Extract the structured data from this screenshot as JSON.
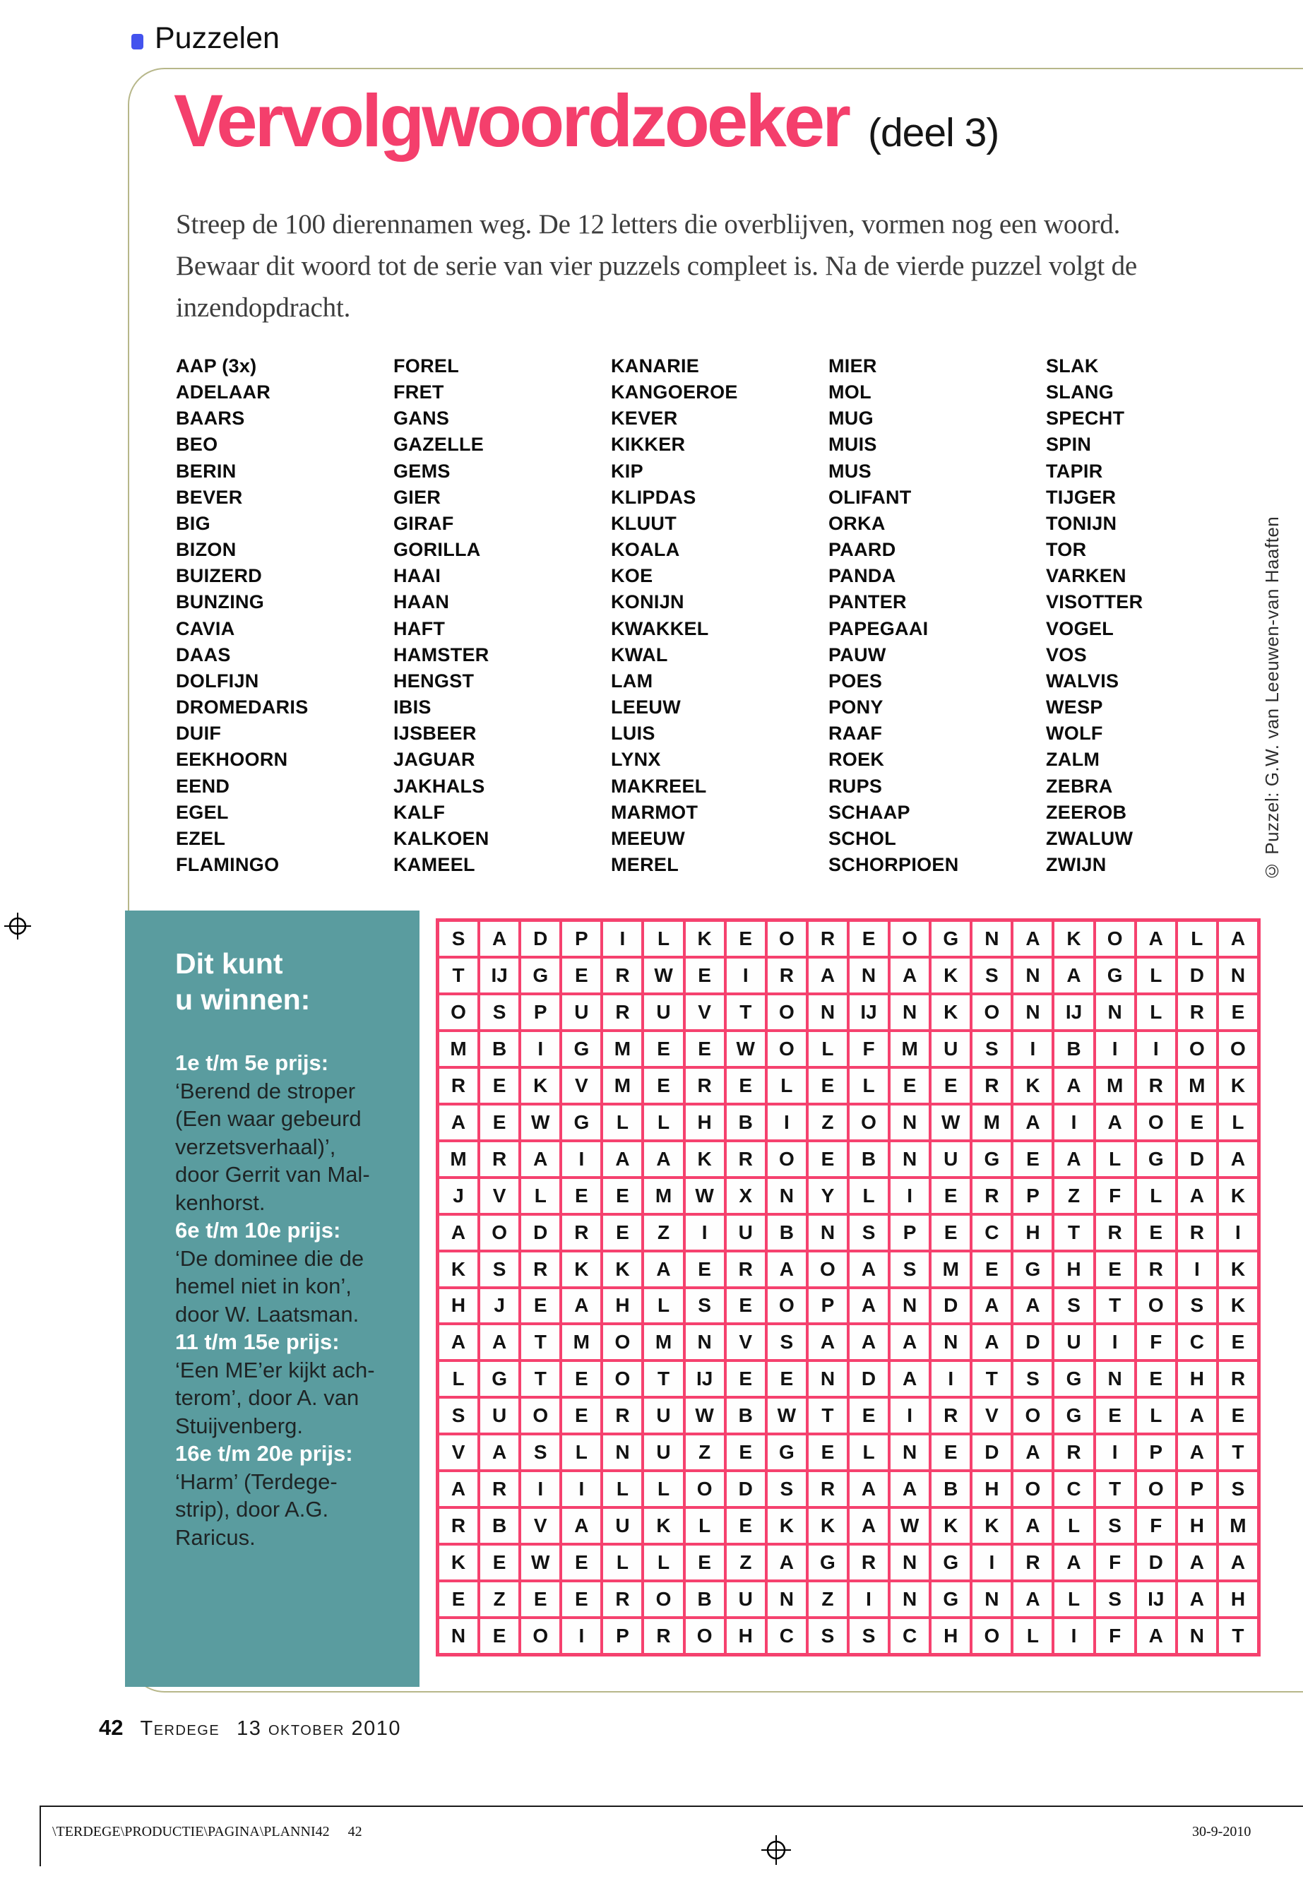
{
  "page": {
    "section_label": "Puzzelen",
    "title": "Vervolgwoordzoeker",
    "title_suffix": "(deel 3)",
    "intro_lines": [
      "Streep de 100 dierennamen weg. De 12 letters die overblijven, vormen nog een woord.",
      "Bewaar dit woord tot de serie van vier puzzels compleet is. Na de vierde puzzel volgt de",
      "inzendopdracht."
    ],
    "credit_vertical": "© Puzzel: G.W. van Leeuwen-van Haaften"
  },
  "colors": {
    "title_pink": "#f43f6c",
    "grid_pink": "#f5416e",
    "prize_teal": "#5a9c9f",
    "header_blue": "#4353ee",
    "frame_olive": "#b7b78a"
  },
  "word_list": {
    "columns": [
      [
        "AAP (3x)",
        "ADELAAR",
        "BAARS",
        "BEO",
        "BERIN",
        "BEVER",
        "BIG",
        "BIZON",
        "BUIZERD",
        "BUNZING",
        "CAVIA",
        "DAAS",
        "DOLFIJN",
        "DROMEDARIS",
        "DUIF",
        "EEKHOORN",
        "EEND",
        "EGEL",
        "EZEL",
        "FLAMINGO"
      ],
      [
        "FOREL",
        "FRET",
        "GANS",
        "GAZELLE",
        "GEMS",
        "GIER",
        "GIRAF",
        "GORILLA",
        "HAAI",
        "HAAN",
        "HAFT",
        "HAMSTER",
        "HENGST",
        "IBIS",
        "IJSBEER",
        "JAGUAR",
        "JAKHALS",
        "KALF",
        "KALKOEN",
        "KAMEEL"
      ],
      [
        "KANARIE",
        "KANGOEROE",
        "KEVER",
        "KIKKER",
        "KIP",
        "KLIPDAS",
        "KLUUT",
        "KOALA",
        "KOE",
        "KONIJN",
        "KWAKKEL",
        "KWAL",
        "LAM",
        "LEEUW",
        "LUIS",
        "LYNX",
        "MAKREEL",
        "MARMOT",
        "MEEUW",
        "MEREL"
      ],
      [
        "MIER",
        "MOL",
        "MUG",
        "MUIS",
        "MUS",
        "OLIFANT",
        "ORKA",
        "PAARD",
        "PANDA",
        "PANTER",
        "PAPEGAAI",
        "PAUW",
        "POES",
        "PONY",
        "RAAF",
        "ROEK",
        "RUPS",
        "SCHAAP",
        "SCHOL",
        "SCHORPIOEN"
      ],
      [
        "SLAK",
        "SLANG",
        "SPECHT",
        "SPIN",
        "TAPIR",
        "TIJGER",
        "TONIJN",
        "TOR",
        "VARKEN",
        "VISOTTER",
        "VOGEL",
        "VOS",
        "WALVIS",
        "WESP",
        "WOLF",
        "ZALM",
        "ZEBRA",
        "ZEEROB",
        "ZWALUW",
        "ZWIJN"
      ]
    ]
  },
  "prize_box": {
    "title_lines": [
      "Dit kunt",
      "u winnen:"
    ],
    "items": [
      {
        "label": "1e t/m 5e prijs:",
        "lines": [
          "‘Berend de stroper",
          "(Een waar gebeurd",
          "verzetsverhaal)’,",
          "door Gerrit van Mal-",
          "kenhorst."
        ]
      },
      {
        "label": "6e t/m 10e prijs:",
        "lines": [
          "‘De dominee die de",
          "hemel niet in kon’,",
          "door W. Laatsman."
        ]
      },
      {
        "label": "11 t/m 15e prijs:",
        "lines": [
          "‘Een ME’er kijkt ach-",
          "terom’, door A. van",
          "Stuijvenberg."
        ]
      },
      {
        "label": "16e t/m 20e prijs:",
        "lines": [
          "‘Harm’ (Terdege-",
          "strip), door A.G.",
          "Raricus."
        ]
      }
    ]
  },
  "grid": {
    "rows": [
      [
        "S",
        "A",
        "D",
        "P",
        "I",
        "L",
        "K",
        "E",
        "O",
        "R",
        "E",
        "O",
        "G",
        "N",
        "A",
        "K",
        "O",
        "A",
        "L",
        "A"
      ],
      [
        "T",
        "IJ",
        "G",
        "E",
        "R",
        "W",
        "E",
        "I",
        "R",
        "A",
        "N",
        "A",
        "K",
        "S",
        "N",
        "A",
        "G",
        "L",
        "D",
        "N"
      ],
      [
        "O",
        "S",
        "P",
        "U",
        "R",
        "U",
        "V",
        "T",
        "O",
        "N",
        "IJ",
        "N",
        "K",
        "O",
        "N",
        "IJ",
        "N",
        "L",
        "R",
        "E"
      ],
      [
        "M",
        "B",
        "I",
        "G",
        "M",
        "E",
        "E",
        "W",
        "O",
        "L",
        "F",
        "M",
        "U",
        "S",
        "I",
        "B",
        "I",
        "I",
        "O",
        "O"
      ],
      [
        "R",
        "E",
        "K",
        "V",
        "M",
        "E",
        "R",
        "E",
        "L",
        "E",
        "L",
        "E",
        "E",
        "R",
        "K",
        "A",
        "M",
        "R",
        "M",
        "K"
      ],
      [
        "A",
        "E",
        "W",
        "G",
        "L",
        "L",
        "H",
        "B",
        "I",
        "Z",
        "O",
        "N",
        "W",
        "M",
        "A",
        "I",
        "A",
        "O",
        "E",
        "L"
      ],
      [
        "M",
        "R",
        "A",
        "I",
        "A",
        "A",
        "K",
        "R",
        "O",
        "E",
        "B",
        "N",
        "U",
        "G",
        "E",
        "A",
        "L",
        "G",
        "D",
        "A"
      ],
      [
        "J",
        "V",
        "L",
        "E",
        "E",
        "M",
        "W",
        "X",
        "N",
        "Y",
        "L",
        "I",
        "E",
        "R",
        "P",
        "Z",
        "F",
        "L",
        "A",
        "K"
      ],
      [
        "A",
        "O",
        "D",
        "R",
        "E",
        "Z",
        "I",
        "U",
        "B",
        "N",
        "S",
        "P",
        "E",
        "C",
        "H",
        "T",
        "R",
        "E",
        "R",
        "I"
      ],
      [
        "K",
        "S",
        "R",
        "K",
        "K",
        "A",
        "E",
        "R",
        "A",
        "O",
        "A",
        "S",
        "M",
        "E",
        "G",
        "H",
        "E",
        "R",
        "I",
        "K"
      ],
      [
        "H",
        "J",
        "E",
        "A",
        "H",
        "L",
        "S",
        "E",
        "O",
        "P",
        "A",
        "N",
        "D",
        "A",
        "A",
        "S",
        "T",
        "O",
        "S",
        "K"
      ],
      [
        "A",
        "A",
        "T",
        "M",
        "O",
        "M",
        "N",
        "V",
        "S",
        "A",
        "A",
        "A",
        "N",
        "A",
        "D",
        "U",
        "I",
        "F",
        "C",
        "E"
      ],
      [
        "L",
        "G",
        "T",
        "E",
        "O",
        "T",
        "IJ",
        "E",
        "E",
        "N",
        "D",
        "A",
        "I",
        "T",
        "S",
        "G",
        "N",
        "E",
        "H",
        "R"
      ],
      [
        "S",
        "U",
        "O",
        "E",
        "R",
        "U",
        "W",
        "B",
        "W",
        "T",
        "E",
        "I",
        "R",
        "V",
        "O",
        "G",
        "E",
        "L",
        "A",
        "E"
      ],
      [
        "V",
        "A",
        "S",
        "L",
        "N",
        "U",
        "Z",
        "E",
        "G",
        "E",
        "L",
        "N",
        "E",
        "D",
        "A",
        "R",
        "I",
        "P",
        "A",
        "T"
      ],
      [
        "A",
        "R",
        "I",
        "I",
        "L",
        "L",
        "O",
        "D",
        "S",
        "R",
        "A",
        "A",
        "B",
        "H",
        "O",
        "C",
        "T",
        "O",
        "P",
        "S"
      ],
      [
        "R",
        "B",
        "V",
        "A",
        "U",
        "K",
        "L",
        "E",
        "K",
        "K",
        "A",
        "W",
        "K",
        "K",
        "A",
        "L",
        "S",
        "F",
        "H",
        "M"
      ],
      [
        "K",
        "E",
        "W",
        "E",
        "L",
        "L",
        "E",
        "Z",
        "A",
        "G",
        "R",
        "N",
        "G",
        "I",
        "R",
        "A",
        "F",
        "D",
        "A",
        "A"
      ],
      [
        "E",
        "Z",
        "E",
        "E",
        "R",
        "O",
        "B",
        "U",
        "N",
        "Z",
        "I",
        "N",
        "G",
        "N",
        "A",
        "L",
        "S",
        "IJ",
        "A",
        "H"
      ],
      [
        "N",
        "E",
        "O",
        "I",
        "P",
        "R",
        "O",
        "H",
        "C",
        "S",
        "S",
        "C",
        "H",
        "O",
        "L",
        "I",
        "F",
        "A",
        "N",
        "T"
      ]
    ]
  },
  "footer": {
    "page_number": "42",
    "magazine": "Terdege",
    "issue_date": "13 oktober 2010"
  },
  "print_info": {
    "slug_path": "\\TERDEGE\\PRODUCTIE\\PAGINA\\PLANNI42",
    "slug_page": "42",
    "proof_date": "30-9-2010"
  }
}
